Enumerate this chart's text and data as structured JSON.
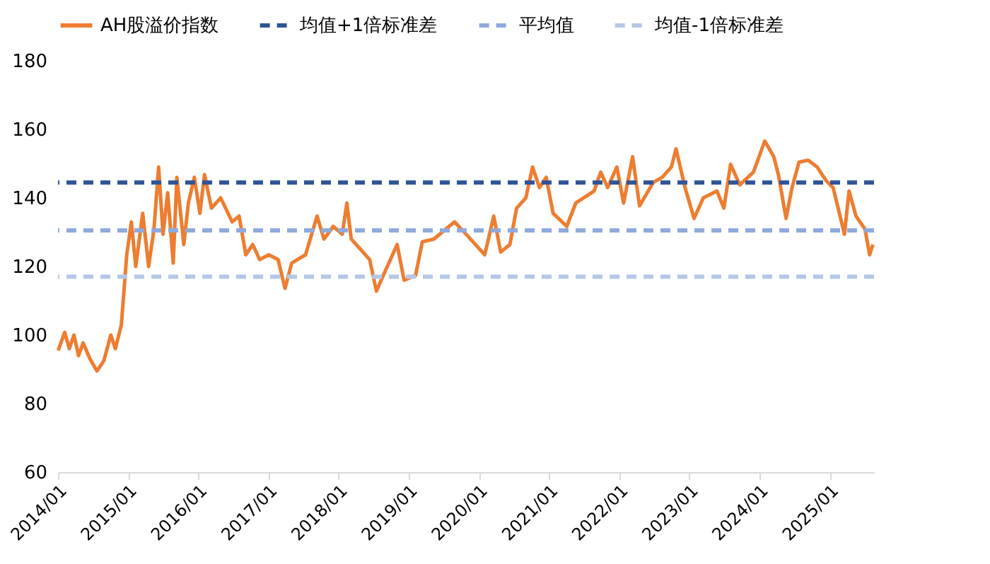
{
  "chart_data": {
    "type": "line",
    "legend": "top",
    "grid": false,
    "marker": "none",
    "line_style": "solid",
    "ylim": [
      60,
      180
    ],
    "yticks": [
      60,
      80,
      100,
      120,
      140,
      160,
      180
    ],
    "xlim": [
      "2014-01-01",
      "2025-08-20"
    ],
    "xticks": [
      {
        "value": "2014-01-01",
        "label": "2014/01"
      },
      {
        "value": "2015-01-01",
        "label": "2015/01"
      },
      {
        "value": "2016-01-01",
        "label": "2016/01"
      },
      {
        "value": "2017-01-01",
        "label": "2017/01"
      },
      {
        "value": "2018-01-01",
        "label": "2018/01"
      },
      {
        "value": "2019-01-01",
        "label": "2019/01"
      },
      {
        "value": "2020-01-01",
        "label": "2020/01"
      },
      {
        "value": "2021-01-01",
        "label": "2021/01"
      },
      {
        "value": "2022-01-01",
        "label": "2022/01"
      },
      {
        "value": "2023-01-01",
        "label": "2023/01"
      },
      {
        "value": "2024-01-01",
        "label": "2024/01"
      },
      {
        "value": "2025-01-01",
        "label": "2025/01"
      }
    ],
    "x": [
      "2014-01-02",
      "2014-02-05",
      "2014-03-01",
      "2014-03-25",
      "2014-04-18",
      "2014-05-12",
      "2014-06-17",
      "2014-07-23",
      "2014-08-28",
      "2014-10-03",
      "2014-10-27",
      "2014-11-27",
      "2014-12-25",
      "2015-01-18",
      "2015-02-10",
      "2015-03-18",
      "2015-04-18",
      "2015-05-16",
      "2015-06-09",
      "2015-07-02",
      "2015-07-26",
      "2015-08-24",
      "2015-09-12",
      "2015-10-18",
      "2015-11-11",
      "2015-12-12",
      "2016-01-10",
      "2016-02-03",
      "2016-03-10",
      "2016-04-27",
      "2016-06-26",
      "2016-08-01",
      "2016-09-05",
      "2016-10-11",
      "2016-11-16",
      "2017-01-03",
      "2017-02-20",
      "2017-03-28",
      "2017-05-02",
      "2017-07-13",
      "2017-09-11",
      "2017-10-17",
      "2017-12-04",
      "2018-01-20",
      "2018-02-13",
      "2018-03-08",
      "2018-04-25",
      "2018-06-12",
      "2018-07-17",
      "2018-08-22",
      "2018-11-02",
      "2018-12-08",
      "2019-02-06",
      "2019-03-13",
      "2019-05-12",
      "2019-06-29",
      "2019-08-28",
      "2019-10-27",
      "2020-02-01",
      "2020-03-19",
      "2020-04-24",
      "2020-06-11",
      "2020-07-16",
      "2020-09-02",
      "2020-10-07",
      "2020-11-12",
      "2020-12-17",
      "2021-01-22",
      "2021-04-03",
      "2021-05-20",
      "2021-08-23",
      "2021-09-27",
      "2021-11-02",
      "2021-12-20",
      "2022-01-24",
      "2022-03-12",
      "2022-04-17",
      "2022-06-27",
      "2022-08-13",
      "2022-09-30",
      "2022-10-24",
      "2022-12-10",
      "2023-01-26",
      "2023-03-15",
      "2023-05-25",
      "2023-06-30",
      "2023-08-04",
      "2023-09-21",
      "2023-12-01",
      "2024-01-29",
      "2024-03-16",
      "2024-04-09",
      "2024-05-19",
      "2024-06-19",
      "2024-07-25",
      "2024-09-11",
      "2024-10-28",
      "2024-12-14",
      "2025-01-19",
      "2025-03-19",
      "2025-04-12",
      "2025-05-18",
      "2025-07-04",
      "2025-07-28",
      "2025-08-14"
    ],
    "series": [
      {
        "name": "AH股溢价指数",
        "color": "#ed7d31",
        "values": [
          95.5,
          100.8,
          96,
          100,
          94,
          97.7,
          93,
          89.5,
          92.5,
          100,
          96,
          103,
          123.4,
          133,
          120,
          135.5,
          120,
          131,
          149,
          129.4,
          141.5,
          121,
          146,
          126.4,
          138.5,
          146,
          135.5,
          146.8,
          137,
          140,
          133,
          134.7,
          123.4,
          126.4,
          122,
          123.4,
          122,
          113.6,
          121,
          123.4,
          134.7,
          128,
          131.7,
          129.4,
          138.5,
          128,
          125,
          122,
          112.8,
          117.4,
          126.4,
          116,
          117.4,
          127.2,
          128,
          130.2,
          133,
          129.4,
          123.4,
          134.7,
          124.2,
          126.4,
          137,
          140,
          149,
          143,
          146,
          135.5,
          131.7,
          138.5,
          142,
          147.5,
          143,
          149,
          138.5,
          152,
          137.7,
          144.5,
          146,
          149,
          154.3,
          143,
          134,
          140,
          142,
          137,
          149.8,
          143.8,
          147.5,
          156.6,
          152,
          146.8,
          134,
          143,
          150.4,
          151,
          149,
          145,
          143,
          129.4,
          142,
          134.7,
          130.9,
          123.4,
          126.4
        ]
      }
    ],
    "ref_lines": [
      {
        "axis": "y",
        "value": 144.5,
        "label": "均值+1倍标准差",
        "color": "#2f5597",
        "line_style": "dashed"
      },
      {
        "axis": "y",
        "value": 130.5,
        "label": "平均值",
        "color": "#8faadc",
        "line_style": "dashed"
      },
      {
        "axis": "y",
        "value": 117,
        "label": "均值-1倍标准差",
        "color": "#b4c7e7",
        "line_style": "dashed"
      }
    ]
  }
}
